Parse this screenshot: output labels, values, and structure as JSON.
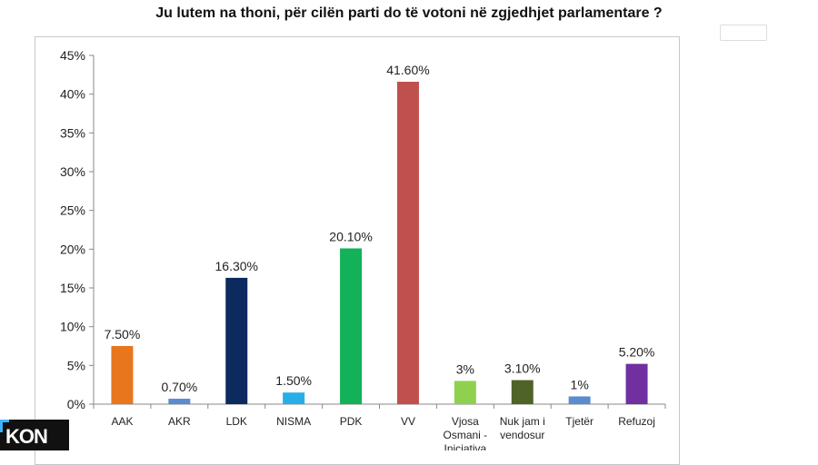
{
  "chart_data": {
    "type": "bar",
    "title": "Ju lutem na thoni, për cilën parti do të votoni në zgjedhjet parlamentare ?",
    "categories": [
      "AAK",
      "AKR",
      "LDK",
      "NISMA",
      "PDK",
      "VV",
      "Vjosa Osmani - Iniciativa",
      "Nuk jam i vendosur",
      "Tjetër",
      "Refuzoj"
    ],
    "category_lines": [
      [
        "AAK"
      ],
      [
        "AKR"
      ],
      [
        "LDK"
      ],
      [
        "NISMA"
      ],
      [
        "PDK"
      ],
      [
        "VV"
      ],
      [
        "Vjosa",
        "Osmani -",
        "Iniciativa"
      ],
      [
        "Nuk jam i",
        "vendosur"
      ],
      [
        "Tjetër"
      ],
      [
        "Refuzoj"
      ]
    ],
    "values": [
      7.5,
      0.7,
      16.3,
      1.5,
      20.1,
      41.6,
      3,
      3.1,
      1,
      5.2
    ],
    "data_labels": [
      "7.50%",
      "0.70%",
      "16.30%",
      "1.50%",
      "20.10%",
      "41.60%",
      "3%",
      "3.10%",
      "1%",
      "5.20%"
    ],
    "colors": [
      "#e8761c",
      "#5b8ccd",
      "#0b2a5e",
      "#27aee8",
      "#13b158",
      "#c0504d",
      "#8fd14f",
      "#4f6228",
      "#5b8ccd",
      "#7030a0"
    ],
    "ylim": [
      0,
      45
    ],
    "yticks": [
      0,
      5,
      10,
      15,
      20,
      25,
      30,
      35,
      40,
      45
    ],
    "ytick_labels": [
      "0%",
      "5%",
      "10%",
      "15%",
      "20%",
      "25%",
      "30%",
      "35%",
      "40%",
      "45%"
    ],
    "xlabel": "",
    "ylabel": "",
    "grid": false,
    "legend": "none"
  },
  "badge": {
    "text": "KON"
  }
}
